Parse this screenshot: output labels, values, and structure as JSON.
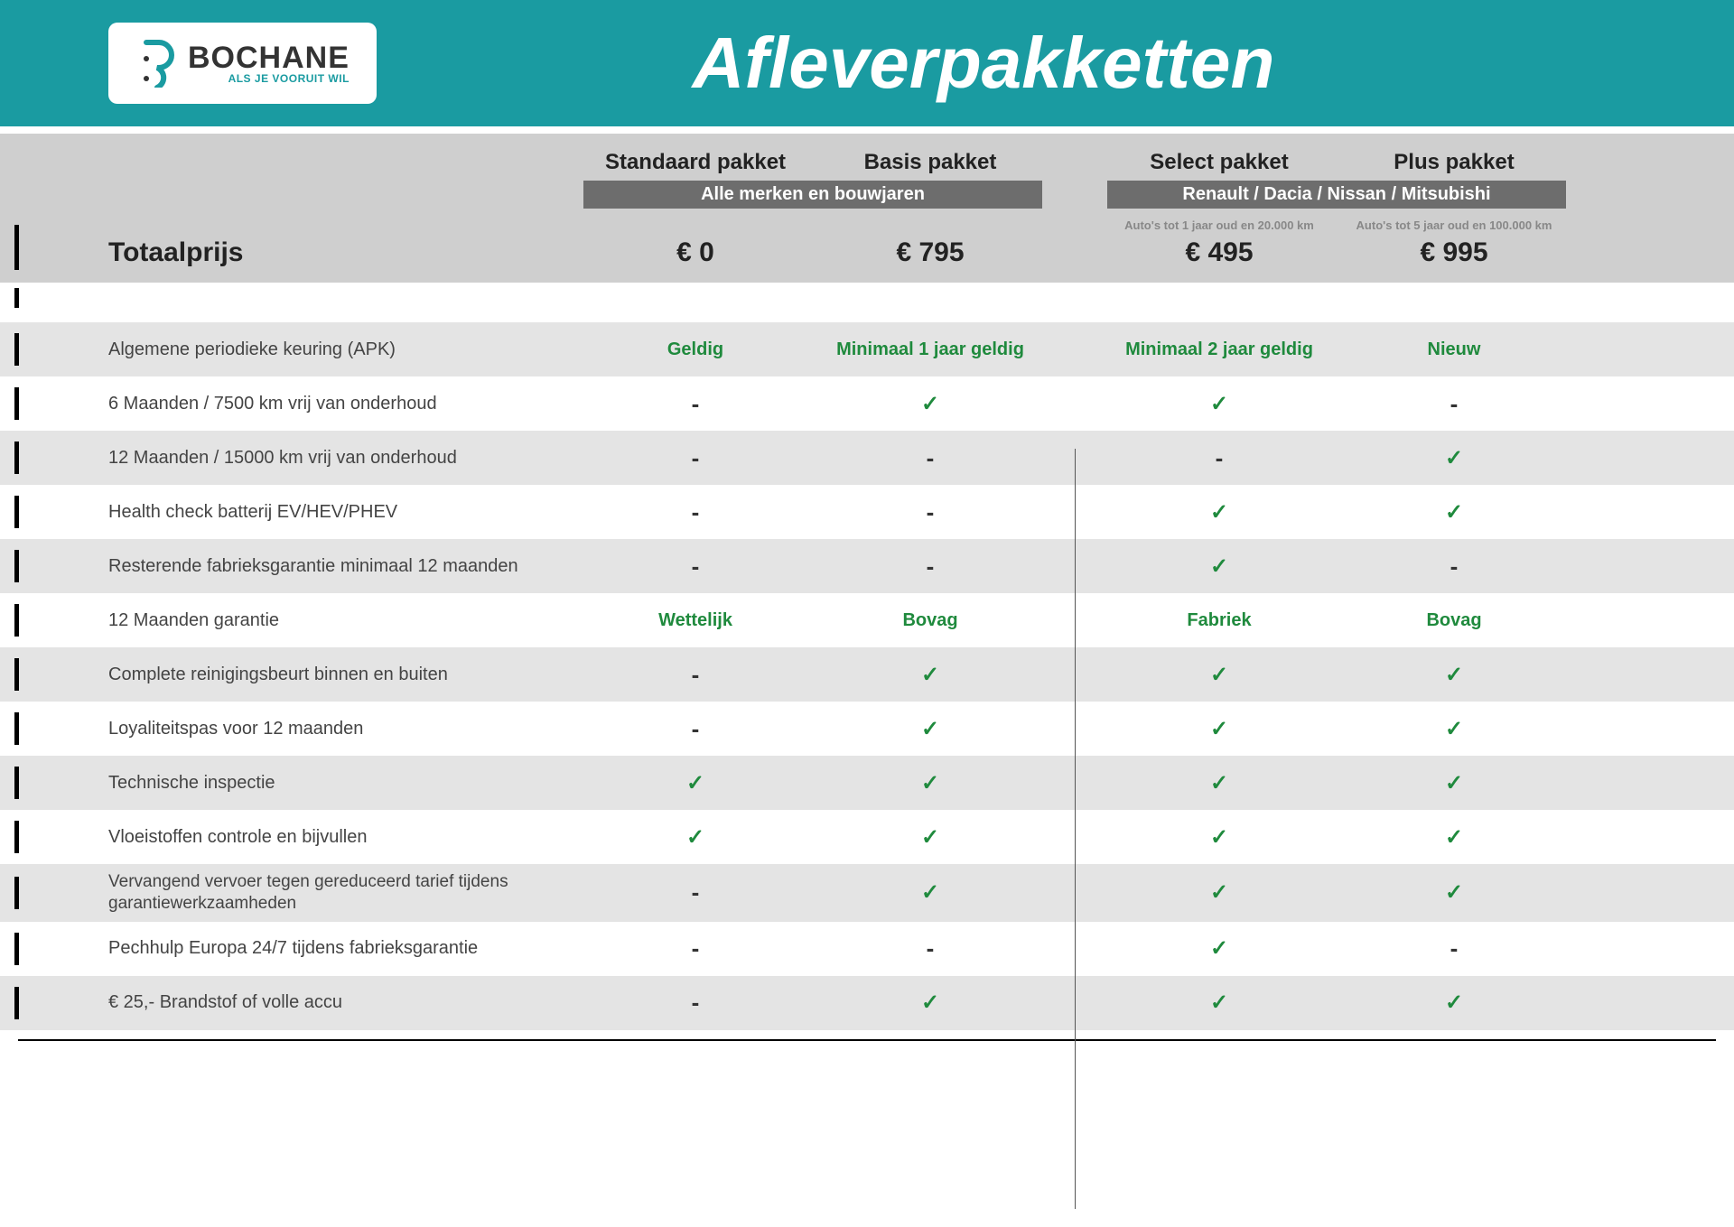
{
  "brand": {
    "name": "BOCHANE",
    "tagline": "ALS JE VOORUIT WIL",
    "accent_color": "#1a9ba1"
  },
  "page_title": "Afleverpakketten",
  "columns": {
    "labels": [
      "Standaard pakket",
      "Basis pakket",
      "Select pakket",
      "Plus pakket"
    ],
    "group_badge_left": "Alle merken en bouwjaren",
    "group_badge_right": "Renault / Dacia / Nissan / Mitsubishi",
    "subnote_select": "Auto's tot 1 jaar oud en 20.000 km",
    "subnote_plus": "Auto's tot 5 jaar oud en 100.000 km"
  },
  "total": {
    "label": "Totaalprijs",
    "prices": [
      "€ 0",
      "€ 795",
      "€ 495",
      "€ 995"
    ]
  },
  "features": [
    {
      "alt": true,
      "label": "Algemene periodieke keuring (APK)",
      "cells": [
        {
          "t": "text",
          "v": "Geldig"
        },
        {
          "t": "text",
          "v": "Minimaal 1 jaar geldig"
        },
        {
          "t": "text",
          "v": "Minimaal 2 jaar geldig"
        },
        {
          "t": "text",
          "v": "Nieuw"
        }
      ]
    },
    {
      "alt": false,
      "label": "6 Maanden / 7500 km vrij van onderhoud",
      "cells": [
        {
          "t": "dash"
        },
        {
          "t": "check"
        },
        {
          "t": "check"
        },
        {
          "t": "dash"
        }
      ]
    },
    {
      "alt": true,
      "label": "12 Maanden / 15000 km vrij van onderhoud",
      "cells": [
        {
          "t": "dash"
        },
        {
          "t": "dash"
        },
        {
          "t": "dash"
        },
        {
          "t": "check"
        }
      ]
    },
    {
      "alt": false,
      "label": "Health check batterij EV/HEV/PHEV",
      "cells": [
        {
          "t": "dash"
        },
        {
          "t": "dash"
        },
        {
          "t": "check"
        },
        {
          "t": "check"
        }
      ]
    },
    {
      "alt": true,
      "label": "Resterende fabrieksgarantie minimaal 12 maanden",
      "cells": [
        {
          "t": "dash"
        },
        {
          "t": "dash"
        },
        {
          "t": "check"
        },
        {
          "t": "dash"
        }
      ]
    },
    {
      "alt": false,
      "label": "12 Maanden  garantie",
      "cells": [
        {
          "t": "text",
          "v": "Wettelijk"
        },
        {
          "t": "text",
          "v": "Bovag"
        },
        {
          "t": "text",
          "v": "Fabriek"
        },
        {
          "t": "text",
          "v": "Bovag"
        }
      ]
    },
    {
      "alt": true,
      "label": "Complete reinigingsbeurt binnen en buiten",
      "cells": [
        {
          "t": "dash"
        },
        {
          "t": "check"
        },
        {
          "t": "check"
        },
        {
          "t": "check"
        }
      ]
    },
    {
      "alt": false,
      "label": "Loyaliteitspas voor 12 maanden",
      "cells": [
        {
          "t": "dash"
        },
        {
          "t": "check"
        },
        {
          "t": "check"
        },
        {
          "t": "check"
        }
      ]
    },
    {
      "alt": true,
      "label": "Technische inspectie",
      "cells": [
        {
          "t": "check"
        },
        {
          "t": "check"
        },
        {
          "t": "check"
        },
        {
          "t": "check"
        }
      ]
    },
    {
      "alt": false,
      "label": "Vloeistoffen controle en bijvullen",
      "cells": [
        {
          "t": "check"
        },
        {
          "t": "check"
        },
        {
          "t": "check"
        },
        {
          "t": "check"
        }
      ]
    },
    {
      "alt": true,
      "two": true,
      "label": "Vervangend vervoer tegen gereduceerd tarief tijdens garantiewerkzaamheden",
      "cells": [
        {
          "t": "dash"
        },
        {
          "t": "check"
        },
        {
          "t": "check"
        },
        {
          "t": "check"
        }
      ]
    },
    {
      "alt": false,
      "label": "Pechhulp Europa 24/7 tijdens fabrieksgarantie",
      "cells": [
        {
          "t": "dash"
        },
        {
          "t": "dash"
        },
        {
          "t": "check"
        },
        {
          "t": "dash"
        }
      ]
    },
    {
      "alt": true,
      "label": "€ 25,- Brandstof of  volle accu",
      "cells": [
        {
          "t": "dash"
        },
        {
          "t": "check"
        },
        {
          "t": "check"
        },
        {
          "t": "check"
        }
      ]
    }
  ],
  "colors": {
    "header_bg": "#1a9ba1",
    "colheader_bg": "#cfcfcf",
    "badge_bg": "#6d6d6d",
    "alt_row_bg": "#e4e4e4",
    "green": "#1f8a3d",
    "text": "#333333",
    "subnote": "#888888"
  }
}
